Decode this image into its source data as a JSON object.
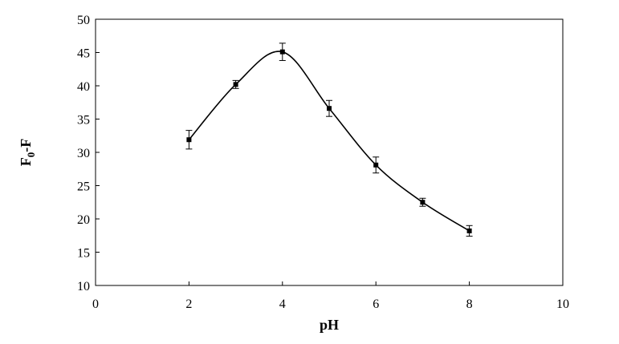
{
  "chart_data": {
    "type": "scatter",
    "title": "",
    "xlabel": "pH",
    "ylabel": {
      "main": "F",
      "sub": "0",
      "rest": "-F"
    },
    "xlim": [
      0,
      10
    ],
    "ylim": [
      10,
      50
    ],
    "xticks": [
      0,
      2,
      4,
      6,
      8,
      10
    ],
    "yticks": [
      10,
      15,
      20,
      25,
      30,
      35,
      40,
      45,
      50
    ],
    "grid": false,
    "legend": "none",
    "smooth_line": true,
    "series": [
      {
        "x": [
          2,
          3,
          4,
          5,
          6,
          7,
          8
        ],
        "y": [
          31.9,
          40.2,
          45.1,
          36.6,
          28.1,
          22.5,
          18.2
        ],
        "error": [
          1.4,
          0.6,
          1.3,
          1.2,
          1.2,
          0.6,
          0.8
        ],
        "color": "#000000"
      }
    ]
  }
}
